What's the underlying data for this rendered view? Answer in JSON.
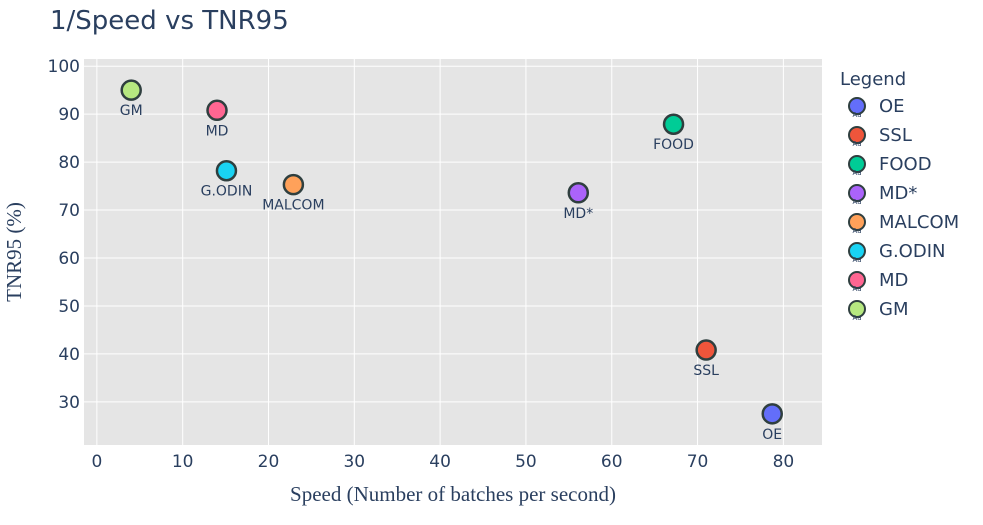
{
  "chart_data": {
    "type": "scatter",
    "title": "1/Speed vs TNR95",
    "xlabel": "Speed (Number of batches per second)",
    "ylabel": "TNR95 (%)",
    "xlim": [
      -1.5,
      84.5
    ],
    "ylim": [
      21,
      101.5
    ],
    "xticks": [
      0,
      10,
      20,
      30,
      40,
      50,
      60,
      70,
      80
    ],
    "yticks": [
      30,
      40,
      50,
      60,
      70,
      80,
      90,
      100
    ],
    "grid": true,
    "legend": {
      "title": "Legend",
      "placement": "right"
    },
    "series": [
      {
        "name": "OE",
        "x": 78.7,
        "y": 27.5,
        "color": "#636efa"
      },
      {
        "name": "SSL",
        "x": 71.0,
        "y": 40.8,
        "color": "#ef553b"
      },
      {
        "name": "FOOD",
        "x": 67.2,
        "y": 87.9,
        "color": "#00cc96"
      },
      {
        "name": "MD*",
        "x": 56.1,
        "y": 73.6,
        "color": "#ab63fa"
      },
      {
        "name": "MALCOM",
        "x": 22.9,
        "y": 75.3,
        "color": "#ffa15a"
      },
      {
        "name": "G.ODIN",
        "x": 15.1,
        "y": 78.2,
        "color": "#19d3f3"
      },
      {
        "name": "MD",
        "x": 14.0,
        "y": 90.8,
        "color": "#ff6692"
      },
      {
        "name": "GM",
        "x": 4.0,
        "y": 95.0,
        "color": "#b6e880"
      }
    ]
  }
}
